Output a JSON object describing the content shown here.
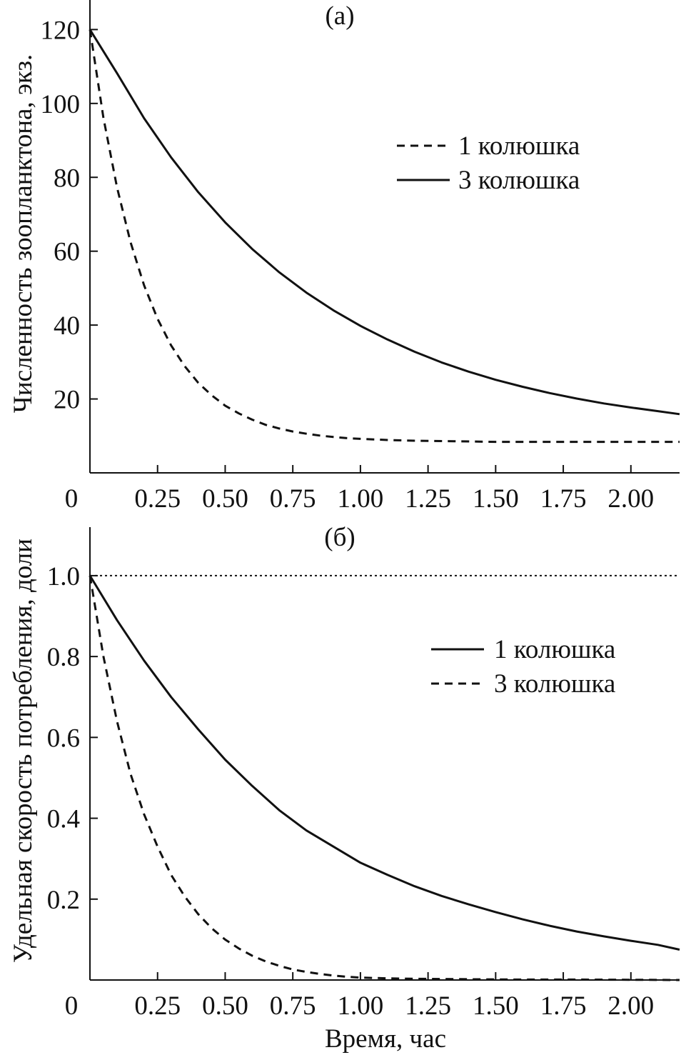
{
  "chart_data": [
    {
      "id": "a",
      "type": "line",
      "panel_label": "(а)",
      "ylabel": "Численность зоопланктона, экз.",
      "xlabel": "",
      "xlim": [
        0,
        2.18
      ],
      "ylim": [
        0,
        128
      ],
      "x_ticks": [
        0.25,
        0.5,
        0.75,
        1.0,
        1.25,
        1.5,
        1.75,
        2.0
      ],
      "x_tick_labels": [
        "0.25",
        "0.50",
        "0.75",
        "1.00",
        "1.25",
        "1.50",
        "1.75",
        "2.00"
      ],
      "y_ticks": [
        20,
        40,
        60,
        80,
        100,
        120
      ],
      "y_tick_labels": [
        "20",
        "40",
        "60",
        "80",
        "100",
        "120"
      ],
      "origin_label": "0",
      "legend_position": "upper-right",
      "series": [
        {
          "name": "1 колюшка",
          "style": "dashed",
          "x": [
            0,
            0.05,
            0.1,
            0.15,
            0.2,
            0.25,
            0.3,
            0.35,
            0.4,
            0.45,
            0.5,
            0.55,
            0.6,
            0.65,
            0.7,
            0.75,
            0.8,
            0.85,
            0.9,
            0.95,
            1.0,
            1.1,
            1.2,
            1.3,
            1.4,
            1.5,
            1.6,
            1.7,
            1.8,
            1.9,
            2.0,
            2.1,
            2.18
          ],
          "values": [
            120,
            96.1,
            77.3,
            62.5,
            50.8,
            41.7,
            34.5,
            28.9,
            24.4,
            21.0,
            18.2,
            16.1,
            14.4,
            13.0,
            12.0,
            11.2,
            10.6,
            10.1,
            9.7,
            9.4,
            9.2,
            8.9,
            8.7,
            8.6,
            8.5,
            8.4,
            8.4,
            8.4,
            8.4,
            8.4,
            8.4,
            8.4,
            8.4
          ]
        },
        {
          "name": "3 колюшка",
          "style": "solid",
          "x": [
            0,
            0.1,
            0.2,
            0.3,
            0.4,
            0.5,
            0.6,
            0.7,
            0.8,
            0.9,
            1.0,
            1.1,
            1.2,
            1.3,
            1.4,
            1.5,
            1.6,
            1.7,
            1.8,
            1.9,
            2.0,
            2.1,
            2.18
          ],
          "values": [
            120,
            108.2,
            96.0,
            85.4,
            76.0,
            67.8,
            60.6,
            54.3,
            48.8,
            44.0,
            39.8,
            36.1,
            32.8,
            29.9,
            27.4,
            25.2,
            23.3,
            21.6,
            20.1,
            18.8,
            17.7,
            16.7,
            15.9
          ]
        }
      ]
    },
    {
      "id": "b",
      "type": "line",
      "panel_label": "(б)",
      "ylabel": "Удельная скорость потребления, доли",
      "xlabel": "Время, час",
      "xlim": [
        0,
        2.18
      ],
      "ylim": [
        0,
        1.12
      ],
      "x_ticks": [
        0.25,
        0.5,
        0.75,
        1.0,
        1.25,
        1.5,
        1.75,
        2.0
      ],
      "x_tick_labels": [
        "0.25",
        "0.50",
        "0.75",
        "1.00",
        "1.25",
        "1.50",
        "1.75",
        "2.00"
      ],
      "y_ticks": [
        0.2,
        0.4,
        0.6,
        0.8,
        1.0
      ],
      "y_tick_labels": [
        "0.2",
        "0.4",
        "0.6",
        "0.8",
        "1.0"
      ],
      "origin_label": "0",
      "reference_line": {
        "y": 1.0,
        "style": "dotted"
      },
      "legend_position": "upper-right",
      "series": [
        {
          "name": "1 колюшка",
          "style": "solid",
          "x": [
            0,
            0.1,
            0.2,
            0.3,
            0.4,
            0.5,
            0.6,
            0.7,
            0.8,
            0.9,
            1.0,
            1.1,
            1.2,
            1.3,
            1.4,
            1.5,
            1.6,
            1.7,
            1.8,
            1.9,
            2.0,
            2.1,
            2.18
          ],
          "values": [
            1.0,
            0.89,
            0.79,
            0.7,
            0.62,
            0.545,
            0.48,
            0.42,
            0.37,
            0.33,
            0.29,
            0.26,
            0.232,
            0.208,
            0.187,
            0.168,
            0.15,
            0.134,
            0.12,
            0.108,
            0.097,
            0.087,
            0.075
          ]
        },
        {
          "name": "3 колюшка",
          "style": "dashed",
          "x": [
            0,
            0.05,
            0.1,
            0.15,
            0.2,
            0.25,
            0.3,
            0.35,
            0.4,
            0.45,
            0.5,
            0.55,
            0.6,
            0.65,
            0.7,
            0.75,
            0.8,
            0.85,
            0.9,
            0.95,
            1.0,
            1.1,
            1.2,
            1.4,
            1.6,
            1.8,
            2.0,
            2.18
          ],
          "values": [
            1.0,
            0.8,
            0.64,
            0.51,
            0.41,
            0.33,
            0.26,
            0.207,
            0.163,
            0.128,
            0.1,
            0.078,
            0.06,
            0.046,
            0.035,
            0.026,
            0.02,
            0.015,
            0.011,
            0.008,
            0.006,
            0.004,
            0.003,
            0.002,
            0.001,
            0.001,
            0.0005,
            0.0
          ]
        }
      ]
    }
  ]
}
